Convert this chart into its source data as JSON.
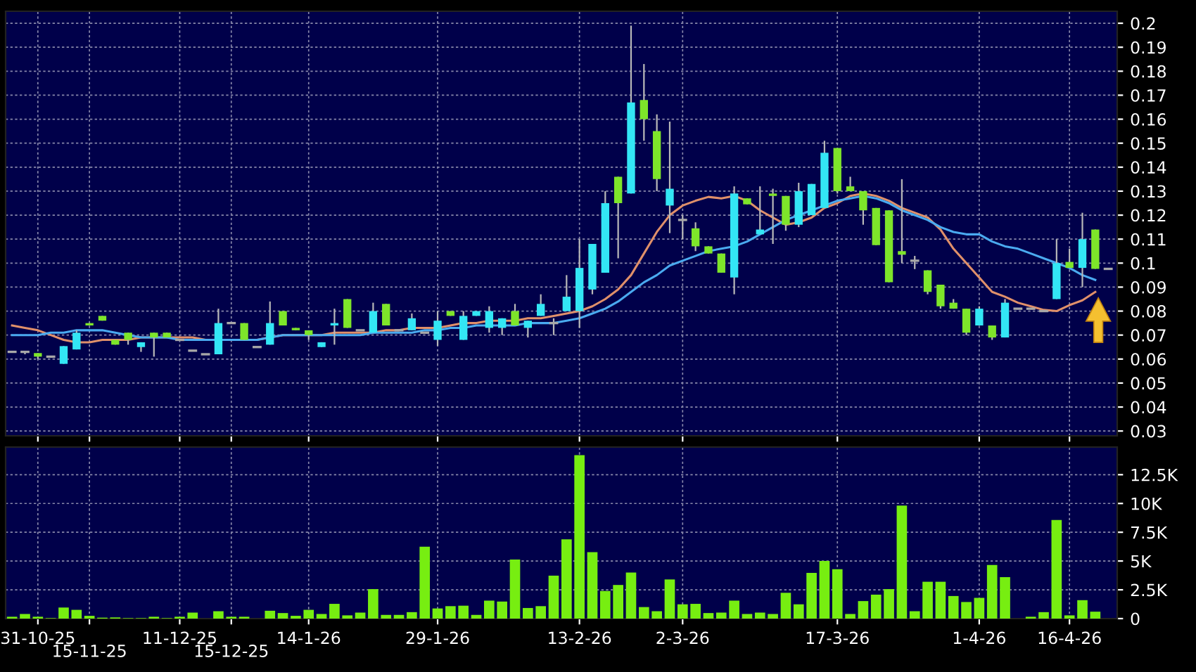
{
  "chart_data": [
    {
      "type": "candlestick",
      "categories": [
        null,
        null,
        null,
        null,
        null,
        null,
        null,
        null,
        null,
        null,
        null,
        null,
        null,
        null,
        null,
        null,
        null,
        null,
        null,
        null,
        null,
        null,
        null,
        null,
        null,
        null,
        null,
        null,
        null,
        null,
        null,
        null,
        null,
        null,
        null,
        null,
        null,
        null,
        null,
        null,
        null,
        null,
        null,
        null,
        null,
        null,
        null,
        null,
        null,
        null,
        null,
        null,
        null,
        null,
        null,
        null,
        null,
        null,
        null,
        null,
        null,
        null,
        null,
        null,
        null,
        null,
        null,
        null,
        null,
        null,
        null,
        null,
        null,
        null,
        null,
        null,
        null,
        null,
        null,
        null,
        null,
        null,
        null,
        null,
        null,
        null
      ],
      "ohlc": [
        [
          0.063,
          0.063,
          0.063,
          0.063
        ],
        [
          0.063,
          0.063,
          0.062,
          0.063
        ],
        [
          0.0625,
          0.0625,
          0.06,
          0.061
        ],
        [
          0.061,
          0.061,
          0.061,
          0.061
        ],
        [
          0.058,
          0.0654,
          0.058,
          0.0654
        ],
        [
          0.064,
          0.072,
          0.064,
          0.071
        ],
        [
          0.075,
          0.075,
          0.074,
          0.074
        ],
        [
          0.078,
          0.078,
          0.076,
          0.076
        ],
        [
          0.068,
          0.068,
          0.066,
          0.066
        ],
        [
          0.071,
          0.071,
          0.066,
          0.068
        ],
        [
          0.065,
          0.067,
          0.063,
          0.067
        ],
        [
          0.071,
          0.071,
          0.061,
          0.069
        ],
        [
          0.071,
          0.071,
          0.069,
          0.069
        ],
        [
          0.068,
          0.068,
          0.068,
          0.068
        ],
        [
          0.0635,
          0.0635,
          0.0635,
          0.0635
        ],
        [
          0.062,
          0.062,
          0.062,
          0.062
        ],
        [
          0.062,
          0.081,
          0.062,
          0.075
        ],
        [
          0.075,
          0.075,
          0.075,
          0.075
        ],
        [
          0.075,
          0.075,
          0.068,
          0.068
        ],
        [
          0.065,
          0.065,
          0.065,
          0.065
        ],
        [
          0.066,
          0.084,
          0.066,
          0.075
        ],
        [
          0.08,
          0.08,
          0.074,
          0.074
        ],
        [
          0.073,
          0.073,
          0.072,
          0.072
        ],
        [
          0.072,
          0.072,
          0.068,
          0.07
        ],
        [
          0.065,
          0.067,
          0.065,
          0.067
        ],
        [
          0.074,
          0.081,
          0.066,
          0.075
        ],
        [
          0.085,
          0.085,
          0.073,
          0.073
        ],
        [
          0.072,
          0.072,
          0.072,
          0.072
        ],
        [
          0.071,
          0.0835,
          0.071,
          0.08
        ],
        [
          0.083,
          0.083,
          0.074,
          0.074
        ],
        [
          0.072,
          0.072,
          0.072,
          0.072
        ],
        [
          0.072,
          0.079,
          0.072,
          0.077
        ],
        [
          0.071,
          0.071,
          0.071,
          0.071
        ],
        [
          0.068,
          0.08,
          0.0655,
          0.076
        ],
        [
          0.08,
          0.08,
          0.078,
          0.078
        ],
        [
          0.068,
          0.08,
          0.068,
          0.078
        ],
        [
          0.078,
          0.08,
          0.078,
          0.08
        ],
        [
          0.073,
          0.082,
          0.071,
          0.08
        ],
        [
          0.073,
          0.077,
          0.07,
          0.077
        ],
        [
          0.08,
          0.083,
          0.074,
          0.074
        ],
        [
          0.073,
          0.076,
          0.069,
          0.076
        ],
        [
          0.078,
          0.087,
          0.078,
          0.083
        ],
        [
          0.075,
          0.077,
          0.07,
          0.075
        ],
        [
          0.08,
          0.095,
          0.08,
          0.086
        ],
        [
          0.08,
          0.11,
          0.073,
          0.098
        ],
        [
          0.089,
          0.108,
          0.087,
          0.108
        ],
        [
          0.096,
          0.13,
          0.096,
          0.125
        ],
        [
          0.136,
          0.136,
          0.102,
          0.125
        ],
        [
          0.129,
          0.199,
          0.129,
          0.167
        ],
        [
          0.168,
          0.183,
          0.151,
          0.16
        ],
        [
          0.155,
          0.162,
          0.13,
          0.135
        ],
        [
          0.124,
          0.159,
          0.1125,
          0.131
        ],
        [
          0.118,
          0.12,
          0.11,
          0.118
        ],
        [
          0.1145,
          0.117,
          0.105,
          0.107
        ],
        [
          0.107,
          0.107,
          0.104,
          0.104
        ],
        [
          0.104,
          0.104,
          0.096,
          0.096
        ],
        [
          0.094,
          0.132,
          0.087,
          0.129
        ],
        [
          0.127,
          0.127,
          0.1245,
          0.1245
        ],
        [
          0.112,
          0.132,
          0.112,
          0.114
        ],
        [
          0.129,
          0.131,
          0.108,
          0.128
        ],
        [
          0.128,
          0.128,
          0.1135,
          0.116
        ],
        [
          0.116,
          0.1335,
          0.115,
          0.13
        ],
        [
          0.12,
          0.133,
          0.12,
          0.133
        ],
        [
          0.123,
          0.151,
          0.123,
          0.146
        ],
        [
          0.148,
          0.148,
          0.129,
          0.13
        ],
        [
          0.132,
          0.136,
          0.13,
          0.13
        ],
        [
          0.13,
          0.13,
          0.116,
          0.122
        ],
        [
          0.123,
          0.123,
          0.1075,
          0.1075
        ],
        [
          0.122,
          0.122,
          0.092,
          0.092
        ],
        [
          0.105,
          0.135,
          0.1,
          0.1035
        ],
        [
          0.101,
          0.103,
          0.0975,
          0.101
        ],
        [
          0.097,
          0.097,
          0.087,
          0.088
        ],
        [
          0.091,
          0.091,
          0.081,
          0.082
        ],
        [
          0.0835,
          0.085,
          0.081,
          0.081
        ],
        [
          0.081,
          0.081,
          0.07,
          0.071
        ],
        [
          0.074,
          0.082,
          0.074,
          0.081
        ],
        [
          0.074,
          0.074,
          0.068,
          0.069
        ],
        [
          0.069,
          0.085,
          0.069,
          0.0835
        ],
        [
          0.081,
          0.081,
          0.081,
          0.081
        ],
        [
          0.081,
          0.081,
          0.081,
          0.081
        ],
        [
          0.08,
          0.08,
          0.08,
          0.08
        ],
        [
          0.085,
          0.11,
          0.085,
          0.1
        ],
        [
          0.1005,
          0.106,
          0.098,
          0.098
        ],
        [
          0.098,
          0.121,
          0.09,
          0.11
        ],
        [
          0.114,
          0.114,
          0.0976,
          0.0976
        ],
        [
          0.0976,
          0.0976,
          0.0976,
          0.0976
        ]
      ],
      "series": [
        {
          "type": "line",
          "color": "#e0906a",
          "values": [
            0.074,
            0.073,
            0.072,
            0.07,
            0.068,
            0.067,
            0.067,
            0.068,
            0.068,
            0.068,
            0.069,
            0.069,
            0.069,
            0.069,
            0.069,
            0.068,
            0.068,
            0.068,
            0.068,
            0.068,
            0.069,
            0.07,
            0.07,
            0.07,
            0.07,
            0.071,
            0.071,
            0.071,
            0.071,
            0.072,
            0.072,
            0.073,
            0.073,
            0.073,
            0.074,
            0.075,
            0.075,
            0.076,
            0.076,
            0.076,
            0.077,
            0.077,
            0.078,
            0.079,
            0.08,
            0.082,
            0.085,
            0.089,
            0.095,
            0.104,
            0.113,
            0.12,
            0.124,
            0.126,
            0.1276,
            0.127,
            0.128,
            0.126,
            0.122,
            0.119,
            0.116,
            0.117,
            0.119,
            0.123,
            0.125,
            0.128,
            0.129,
            0.128,
            0.126,
            0.123,
            0.121,
            0.119,
            0.114,
            0.106,
            0.1,
            0.094,
            0.088,
            0.086,
            0.0835,
            0.082,
            0.0805,
            0.08,
            0.0825,
            0.0845,
            0.088,
            null
          ]
        },
        {
          "type": "line",
          "color": "#4aaaf0",
          "values": [
            0.07,
            0.07,
            0.07,
            0.071,
            0.071,
            0.072,
            0.072,
            0.072,
            0.071,
            0.07,
            0.069,
            0.069,
            0.069,
            0.068,
            0.068,
            0.068,
            0.068,
            0.068,
            0.068,
            0.068,
            0.069,
            0.07,
            0.07,
            0.07,
            0.07,
            0.07,
            0.07,
            0.07,
            0.071,
            0.071,
            0.071,
            0.071,
            0.072,
            0.072,
            0.073,
            0.073,
            0.074,
            0.074,
            0.074,
            0.074,
            0.075,
            0.075,
            0.075,
            0.076,
            0.077,
            0.079,
            0.081,
            0.084,
            0.088,
            0.092,
            0.095,
            0.099,
            0.101,
            0.103,
            0.105,
            0.106,
            0.107,
            0.109,
            0.112,
            0.115,
            0.118,
            0.12,
            0.122,
            0.124,
            0.126,
            0.127,
            0.128,
            0.127,
            0.125,
            0.122,
            0.12,
            0.118,
            0.115,
            0.113,
            0.112,
            0.112,
            0.109,
            0.107,
            0.106,
            0.104,
            0.102,
            0.1,
            0.098,
            0.095,
            0.093,
            null
          ]
        }
      ],
      "colors": [
        "#a8a8a8",
        "#a8a8a8",
        "#7ee52a",
        "#a8a8a8",
        "#33e6f5",
        "#33e6f5",
        "#7ee52a",
        "#7ee52a",
        "#7ee52a",
        "#7ee52a",
        "#33e6f5",
        "#7ee52a",
        "#7ee52a",
        "#a8a8a8",
        "#a8a8a8",
        "#a8a8a8",
        "#33e6f5",
        "#a8a8a8",
        "#7ee52a",
        "#a8a8a8",
        "#33e6f5",
        "#7ee52a",
        "#7ee52a",
        "#7ee52a",
        "#33e6f5",
        "#33e6f5",
        "#7ee52a",
        "#a8a8a8",
        "#33e6f5",
        "#7ee52a",
        "#a8a8a8",
        "#33e6f5",
        "#a8a8a8",
        "#33e6f5",
        "#7ee52a",
        "#33e6f5",
        "#33e6f5",
        "#33e6f5",
        "#33e6f5",
        "#7ee52a",
        "#33e6f5",
        "#33e6f5",
        "#a8a8a8",
        "#33e6f5",
        "#33e6f5",
        "#33e6f5",
        "#33e6f5",
        "#7ee52a",
        "#33e6f5",
        "#7ee52a",
        "#7ee52a",
        "#33e6f5",
        "#a8a8a8",
        "#7ee52a",
        "#7ee52a",
        "#7ee52a",
        "#33e6f5",
        "#7ee52a",
        "#33e6f5",
        "#7ee52a",
        "#7ee52a",
        "#33e6f5",
        "#33e6f5",
        "#33e6f5",
        "#7ee52a",
        "#7ee52a",
        "#7ee52a",
        "#7ee52a",
        "#7ee52a",
        "#7ee52a",
        "#a8a8a8",
        "#7ee52a",
        "#7ee52a",
        "#7ee52a",
        "#7ee52a",
        "#33e6f5",
        "#7ee52a",
        "#33e6f5",
        "#a8a8a8",
        "#a8a8a8",
        "#a8a8a8",
        "#33e6f5",
        "#7ee52a",
        "#33e6f5",
        "#7ee52a",
        "#a8a8a8"
      ],
      "ylim": [
        0.028,
        0.205
      ],
      "yticks": [
        0.03,
        0.04,
        0.05,
        0.06,
        0.07,
        0.08,
        0.09,
        0.1,
        0.11,
        0.12,
        0.13,
        0.14,
        0.15,
        0.16,
        0.17,
        0.18,
        0.19,
        0.2
      ],
      "grid": true,
      "tick_labels": "y"
    },
    {
      "type": "bar",
      "categories": [
        null,
        null,
        "31-10-25",
        null,
        null,
        null,
        "15-11-25",
        null,
        null,
        null,
        null,
        null,
        null,
        "11-12-25",
        null,
        null,
        null,
        "15-12-25",
        null,
        null,
        null,
        null,
        null,
        "14-1-26",
        null,
        null,
        null,
        null,
        null,
        null,
        null,
        null,
        null,
        "29-1-26",
        null,
        null,
        null,
        null,
        null,
        null,
        null,
        null,
        null,
        null,
        "13-2-26",
        null,
        null,
        null,
        null,
        null,
        null,
        null,
        "2-3-26",
        null,
        null,
        null,
        null,
        null,
        null,
        null,
        null,
        null,
        null,
        null,
        "17-3-26",
        null,
        null,
        null,
        null,
        null,
        null,
        null,
        null,
        null,
        null,
        "1-4-26",
        null,
        null,
        null,
        null,
        null,
        null,
        "16-4-26",
        null,
        null,
        null
      ],
      "color": "#77ee11",
      "values": [
        160,
        400,
        160,
        40,
        960,
        760,
        240,
        80,
        100,
        40,
        40,
        160,
        40,
        160,
        520,
        0,
        640,
        160,
        160,
        0,
        680,
        480,
        240,
        760,
        400,
        1280,
        280,
        520,
        2560,
        320,
        320,
        560,
        6250,
        880,
        1080,
        1120,
        320,
        1560,
        1480,
        5130,
        920,
        1080,
        3730,
        6890,
        14200,
        5770,
        2400,
        2920,
        4000,
        1000,
        640,
        3400,
        1240,
        1280,
        480,
        520,
        1560,
        400,
        520,
        400,
        2240,
        1240,
        3970,
        5000,
        4290,
        400,
        1520,
        2080,
        2560,
        9810,
        640,
        3200,
        3200,
        1960,
        1440,
        1800,
        4650,
        3600,
        0,
        160,
        560,
        8570,
        280,
        1600,
        600,
        null
      ],
      "ylim": [
        0,
        14900
      ],
      "yticks": [
        0,
        {
          "value": 2500,
          "label": "2.5K"
        },
        {
          "value": 5000,
          "label": "5K"
        },
        {
          "value": 7500,
          "label": "7.5K"
        },
        {
          "value": 10000,
          "label": "10K"
        },
        {
          "value": 12500,
          "label": "12.5K"
        }
      ],
      "grid": true
    }
  ]
}
